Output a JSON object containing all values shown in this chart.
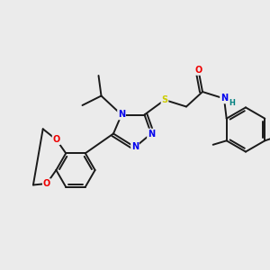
{
  "background_color": "#ebebeb",
  "figsize": [
    3.0,
    3.0
  ],
  "dpi": 100,
  "bond_color": "#1a1a1a",
  "bond_width": 1.4,
  "atom_colors": {
    "N": "#0000ee",
    "O": "#ee0000",
    "S": "#cccc00",
    "H": "#008080",
    "C": "#1a1a1a"
  },
  "font_size": 7.0,
  "font_size_small": 6.0,
  "xlim": [
    0,
    10
  ],
  "ylim": [
    0,
    10
  ]
}
